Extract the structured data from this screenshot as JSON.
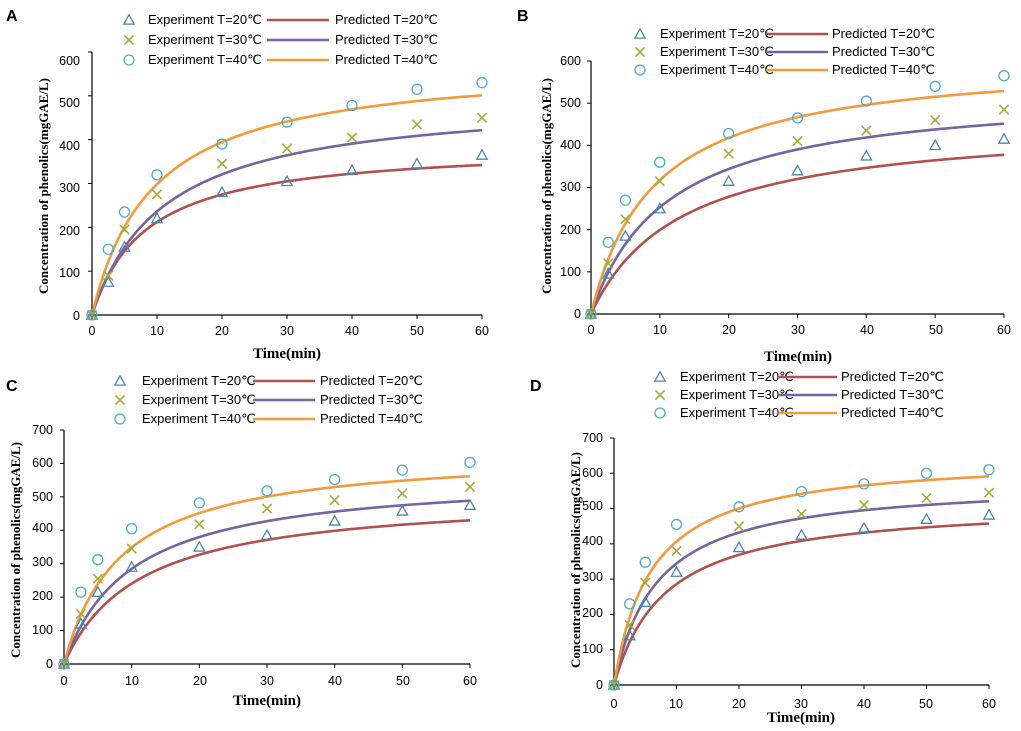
{
  "colors": {
    "exp20": "#4a86a8",
    "exp30": "#a3ab3a",
    "exp40": "#4bacc6",
    "pred20": "#b1504c",
    "pred30": "#7564a0",
    "pred40": "#f39b3c"
  },
  "chart_data": [
    {
      "panel": "A",
      "type": "scatter",
      "xlabel": "Time(min)",
      "ylabel": "Concentration of phenolics(mgGAE/L)",
      "xlim": [
        0,
        60
      ],
      "ylim": [
        0,
        600
      ],
      "xticks": [
        0,
        10,
        20,
        30,
        40,
        50,
        60
      ],
      "yticks": [
        0,
        100,
        200,
        300,
        400,
        500,
        600
      ],
      "legend": [
        "Experiment T=20℃",
        "Predicted T=20℃",
        "Experiment T=30℃",
        "Predicted T=30℃",
        "Experiment T=40℃",
        "Predicted T=40℃"
      ],
      "series": [
        {
          "name": "Experiment T=20℃",
          "kind": "marker",
          "marker": "triangle",
          "color_key": "exp20",
          "x": [
            0,
            2.5,
            5,
            10,
            20,
            30,
            40,
            50,
            60
          ],
          "y": [
            0,
            75,
            155,
            220,
            280,
            305,
            330,
            345,
            365
          ]
        },
        {
          "name": "Experiment T=30℃",
          "kind": "marker",
          "marker": "x",
          "color_key": "exp30",
          "x": [
            0,
            2.5,
            5,
            10,
            20,
            30,
            40,
            50,
            60
          ],
          "y": [
            0,
            90,
            195,
            275,
            345,
            380,
            405,
            435,
            450
          ]
        },
        {
          "name": "Experiment T=40℃",
          "kind": "marker",
          "marker": "circle",
          "color_key": "exp40",
          "x": [
            0,
            2.5,
            5,
            10,
            20,
            30,
            40,
            50,
            60
          ],
          "y": [
            0,
            150,
            235,
            320,
            390,
            440,
            478,
            515,
            530
          ]
        },
        {
          "name": "Predicted T=20℃",
          "kind": "line",
          "color_key": "pred20",
          "cs": 390,
          "k": 0.000306
        },
        {
          "name": "Predicted T=30℃",
          "kind": "line",
          "color_key": "pred30",
          "cs": 500,
          "k": 0.000179
        },
        {
          "name": "Predicted T=40℃",
          "kind": "line",
          "color_key": "pred40",
          "cs": 580,
          "k": 0.000183
        }
      ]
    },
    {
      "panel": "B",
      "type": "scatter",
      "xlabel": "Time(min)",
      "ylabel": "Concentration of phenolics(mgGAE/L)",
      "xlim": [
        0,
        60
      ],
      "ylim": [
        0,
        600
      ],
      "xticks": [
        0,
        10,
        20,
        30,
        40,
        50,
        60
      ],
      "yticks": [
        0,
        100,
        200,
        300,
        400,
        500,
        600
      ],
      "legend": [
        "Experiment T=20℃",
        "Predicted T=20℃",
        "Experiment T=30℃",
        "Predicted T=30℃",
        "Experiment T=40℃",
        "Predicted T=40℃"
      ],
      "series": [
        {
          "name": "Experiment T=20℃",
          "kind": "marker",
          "marker": "triangle",
          "color_key": "exp20",
          "x": [
            0,
            2.5,
            5,
            10,
            20,
            30,
            40,
            50,
            60
          ],
          "y": [
            0,
            95,
            185,
            250,
            315,
            340,
            375,
            400,
            415
          ]
        },
        {
          "name": "Experiment T=30℃",
          "kind": "marker",
          "marker": "x",
          "color_key": "exp30",
          "x": [
            0,
            2.5,
            5,
            10,
            20,
            30,
            40,
            50,
            60
          ],
          "y": [
            0,
            120,
            225,
            315,
            380,
            410,
            435,
            460,
            485
          ]
        },
        {
          "name": "Experiment T=40℃",
          "kind": "marker",
          "marker": "circle",
          "color_key": "exp40",
          "x": [
            0,
            2.5,
            5,
            10,
            20,
            30,
            40,
            50,
            60
          ],
          "y": [
            0,
            170,
            270,
            360,
            428,
            465,
            505,
            540,
            565
          ]
        },
        {
          "name": "Predicted T=20℃",
          "kind": "line",
          "color_key": "pred20",
          "cs": 460,
          "k": 0.000166
        },
        {
          "name": "Predicted T=30℃",
          "kind": "line",
          "color_key": "pred30",
          "cs": 535,
          "k": 0.000168
        },
        {
          "name": "Predicted T=40℃",
          "kind": "line",
          "color_key": "pred40",
          "cs": 610,
          "k": 0.000178
        }
      ]
    },
    {
      "panel": "C",
      "type": "scatter",
      "xlabel": "Time(min)",
      "ylabel": "Concentration of phenolics(mgGAE/L)",
      "xlim": [
        0,
        60
      ],
      "ylim": [
        0,
        700
      ],
      "xticks": [
        0,
        10,
        20,
        30,
        40,
        50,
        60
      ],
      "yticks": [
        0,
        100,
        200,
        300,
        400,
        500,
        600,
        700
      ],
      "legend": [
        "Experiment T=20℃",
        "Predicted T=20℃",
        "Experiment T=30℃",
        "Predicted T=30℃",
        "Experiment T=40℃",
        "Predicted T=40℃"
      ],
      "series": [
        {
          "name": "Experiment T=20℃",
          "kind": "marker",
          "marker": "triangle",
          "color_key": "exp20",
          "x": [
            0,
            2.5,
            5,
            10,
            20,
            30,
            40,
            50,
            60
          ],
          "y": [
            0,
            120,
            215,
            290,
            350,
            385,
            428,
            458,
            475
          ]
        },
        {
          "name": "Experiment T=30℃",
          "kind": "marker",
          "marker": "x",
          "color_key": "exp30",
          "x": [
            0,
            2.5,
            5,
            10,
            20,
            30,
            40,
            50,
            60
          ],
          "y": [
            0,
            150,
            255,
            345,
            418,
            465,
            490,
            510,
            530
          ]
        },
        {
          "name": "Experiment T=40℃",
          "kind": "marker",
          "marker": "circle",
          "color_key": "exp40",
          "x": [
            0,
            2.5,
            5,
            10,
            20,
            30,
            40,
            50,
            60
          ],
          "y": [
            0,
            215,
            312,
            405,
            482,
            518,
            552,
            580,
            603
          ]
        },
        {
          "name": "Predicted T=20℃",
          "kind": "line",
          "color_key": "pred20",
          "cs": 510,
          "k": 0.000175
        },
        {
          "name": "Predicted T=30℃",
          "kind": "line",
          "color_key": "pred30",
          "cs": 570,
          "k": 0.000175
        },
        {
          "name": "Predicted T=40℃",
          "kind": "line",
          "color_key": "pred40",
          "cs": 640,
          "k": 0.000187
        }
      ]
    },
    {
      "panel": "D",
      "type": "scatter",
      "xlabel": "Time(min)",
      "ylabel": "Concentration of phenolics(mgGAE/L)",
      "xlim": [
        0,
        60
      ],
      "ylim": [
        0,
        700
      ],
      "xticks": [
        0,
        10,
        20,
        30,
        40,
        50,
        60
      ],
      "yticks": [
        0,
        100,
        200,
        300,
        400,
        500,
        600,
        700
      ],
      "legend": [
        "Experiment T=20℃",
        "Predicted T=20℃",
        "Experiment T=30℃",
        "Predicted T=30℃",
        "Experiment T=40℃",
        "Predicted T=40℃"
      ],
      "series": [
        {
          "name": "Experiment T=20℃",
          "kind": "marker",
          "marker": "triangle",
          "color_key": "exp20",
          "x": [
            0,
            2.5,
            5,
            10,
            20,
            30,
            40,
            50,
            60
          ],
          "y": [
            0,
            140,
            235,
            320,
            390,
            425,
            445,
            470,
            482
          ]
        },
        {
          "name": "Experiment T=30℃",
          "kind": "marker",
          "marker": "x",
          "color_key": "exp30",
          "x": [
            0,
            2.5,
            5,
            10,
            20,
            30,
            40,
            50,
            60
          ],
          "y": [
            0,
            170,
            290,
            380,
            450,
            485,
            510,
            530,
            545
          ]
        },
        {
          "name": "Experiment T=40℃",
          "kind": "marker",
          "marker": "circle",
          "color_key": "exp40",
          "x": [
            0,
            2.5,
            5,
            10,
            20,
            30,
            40,
            50,
            60
          ],
          "y": [
            0,
            230,
            348,
            455,
            505,
            548,
            570,
            600,
            610
          ]
        },
        {
          "name": "Predicted T=20℃",
          "kind": "line",
          "color_key": "pred20",
          "cs": 520,
          "k": 0.000235
        },
        {
          "name": "Predicted T=30℃",
          "kind": "line",
          "color_key": "pred30",
          "cs": 580,
          "k": 0.000252
        },
        {
          "name": "Predicted T=40℃",
          "kind": "line",
          "color_key": "pred40",
          "cs": 650,
          "k": 0.000257
        }
      ]
    }
  ]
}
